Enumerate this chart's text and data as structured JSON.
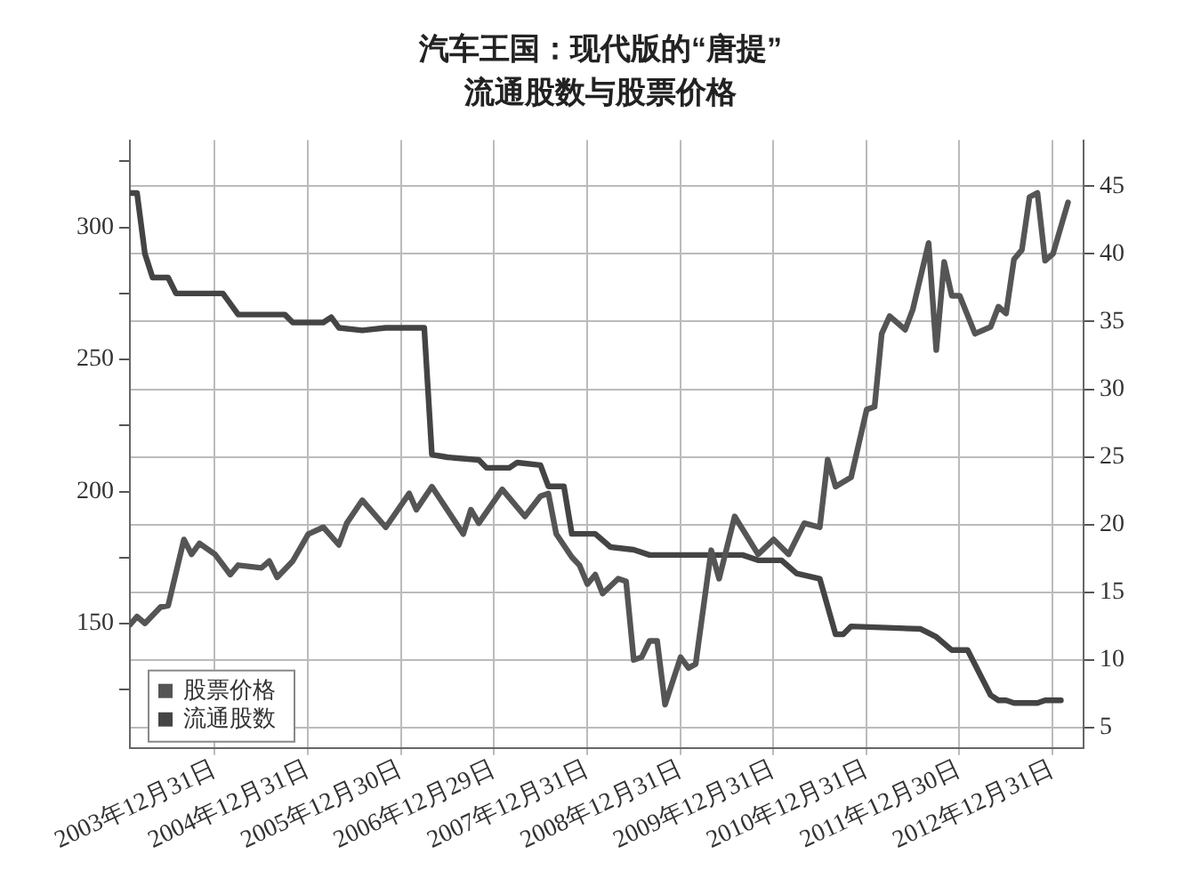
{
  "chart_data": {
    "type": "line",
    "title": "汽车王国：现代版的“唐提”",
    "subtitle": "流通股数与股票价格",
    "xlim": [
      "2003-02",
      "2013-05"
    ],
    "xticks": [
      {
        "value": "2003-12-31",
        "label": "2003年12月31日"
      },
      {
        "value": "2004-12-31",
        "label": "2004年12月31日"
      },
      {
        "value": "2005-12-30",
        "label": "2005年12月30日"
      },
      {
        "value": "2006-12-29",
        "label": "2006年12月29日"
      },
      {
        "value": "2007-12-31",
        "label": "2007年12月31日"
      },
      {
        "value": "2008-12-31",
        "label": "2008年12月31日"
      },
      {
        "value": "2009-12-31",
        "label": "2009年12月31日"
      },
      {
        "value": "2010-12-31",
        "label": "2010年12月31日"
      },
      {
        "value": "2011-12-30",
        "label": "2011年12月30日"
      },
      {
        "value": "2012-12-31",
        "label": "2012年12月31日"
      }
    ],
    "ylim": [
      103,
      333
    ],
    "yticks": [
      {
        "value": 125,
        "label": null
      },
      150,
      {
        "value": 175,
        "label": null
      },
      200,
      {
        "value": 225,
        "label": null
      },
      250,
      {
        "value": 275,
        "label": null
      },
      300,
      {
        "value": 325,
        "label": null
      }
    ],
    "y2lim": [
      3.5,
      48.4
    ],
    "y2ticks": [
      5,
      10,
      15,
      20,
      25,
      30,
      35,
      40,
      45
    ],
    "grid": true,
    "legend": "bottom left",
    "marker": "none",
    "line_style": "solid",
    "series": [
      {
        "name": "股票价格",
        "color": "#555555",
        "axis": "y2",
        "x": [
          "2003-02",
          "2003-03",
          "2003-04",
          "2003-06",
          "2003-07",
          "2003-09",
          "2003-10",
          "2003-11",
          "2004-01",
          "2004-03",
          "2004-04",
          "2004-07",
          "2004-08",
          "2004-09",
          "2004-11",
          "2005-01",
          "2005-03",
          "2005-05",
          "2005-06",
          "2005-08",
          "2005-11",
          "2006-02",
          "2006-03",
          "2006-05",
          "2006-09",
          "2006-10",
          "2006-11",
          "2007-02",
          "2007-05",
          "2007-07",
          "2007-08",
          "2007-09",
          "2007-11",
          "2007-12",
          "2008-01",
          "2008-02",
          "2008-03",
          "2008-05",
          "2008-06",
          "2008-07",
          "2008-08",
          "2008-09",
          "2008-10",
          "2008-11",
          "2009-01",
          "2009-02",
          "2009-03",
          "2009-05",
          "2009-06",
          "2009-08",
          "2009-11",
          "2010-01",
          "2010-03",
          "2010-05",
          "2010-07",
          "2010-08",
          "2010-09",
          "2010-11",
          "2011-01",
          "2011-02",
          "2011-03",
          "2011-04",
          "2011-06",
          "2011-07",
          "2011-09",
          "2011-10",
          "2011-11",
          "2011-12",
          "2012-01",
          "2012-03",
          "2012-05",
          "2012-06",
          "2012-07",
          "2012-08",
          "2012-09",
          "2012-10",
          "2012-11",
          "2012-12",
          "2013-01",
          "2013-03"
        ],
        "values": [
          12.6,
          13.2,
          12.7,
          13.9,
          14.0,
          18.9,
          17.8,
          18.6,
          17.8,
          16.3,
          17.0,
          16.8,
          17.3,
          16.1,
          17.3,
          19.3,
          19.8,
          18.5,
          20.1,
          21.8,
          19.8,
          22.3,
          21.1,
          22.8,
          19.3,
          21.1,
          20.1,
          22.6,
          20.6,
          22.1,
          22.3,
          19.3,
          17.6,
          17.0,
          15.6,
          16.3,
          14.9,
          16.0,
          15.8,
          10.0,
          10.2,
          11.4,
          11.4,
          6.7,
          10.2,
          9.4,
          9.7,
          18.1,
          16.0,
          20.6,
          17.8,
          18.9,
          17.8,
          20.1,
          19.8,
          24.8,
          22.8,
          23.5,
          28.5,
          28.7,
          34.1,
          35.4,
          34.4,
          35.9,
          40.8,
          32.9,
          39.4,
          36.9,
          36.9,
          34.1,
          34.6,
          36.1,
          35.6,
          39.6,
          40.3,
          44.2,
          44.5,
          39.5,
          40.0,
          43.8
        ]
      },
      {
        "name": "流通股数",
        "color": "#444444",
        "x": [
          "2003-02",
          "2003-03",
          "2003-04",
          "2003-05",
          "2003-07",
          "2003-08",
          "2004-02",
          "2004-04",
          "2004-10",
          "2004-11",
          "2005-03",
          "2005-04",
          "2005-05",
          "2005-08",
          "2005-11",
          "2006-04",
          "2006-05",
          "2006-07",
          "2006-11",
          "2006-12",
          "2007-03",
          "2007-04",
          "2007-07",
          "2007-08",
          "2007-10",
          "2007-11",
          "2008-02",
          "2008-04",
          "2008-07",
          "2008-09",
          "2009-09",
          "2009-11",
          "2010-02",
          "2010-04",
          "2010-07",
          "2010-09",
          "2010-10",
          "2010-11",
          "2011-08",
          "2011-10",
          "2011-12",
          "2012-02",
          "2012-05",
          "2012-06",
          "2012-07",
          "2012-08",
          "2012-11",
          "2012-12",
          "2013-02"
        ],
        "values": [
          313,
          313,
          290,
          281,
          281,
          275,
          275,
          267,
          267,
          264,
          264,
          266,
          262,
          261,
          262,
          262,
          214,
          213,
          212,
          209,
          209,
          211,
          210,
          202,
          202,
          184,
          184,
          179,
          178,
          176,
          176,
          174,
          174,
          169,
          167,
          146,
          146,
          149,
          148,
          145,
          140,
          140,
          123,
          121,
          121,
          120,
          120,
          121,
          121
        ]
      }
    ]
  }
}
